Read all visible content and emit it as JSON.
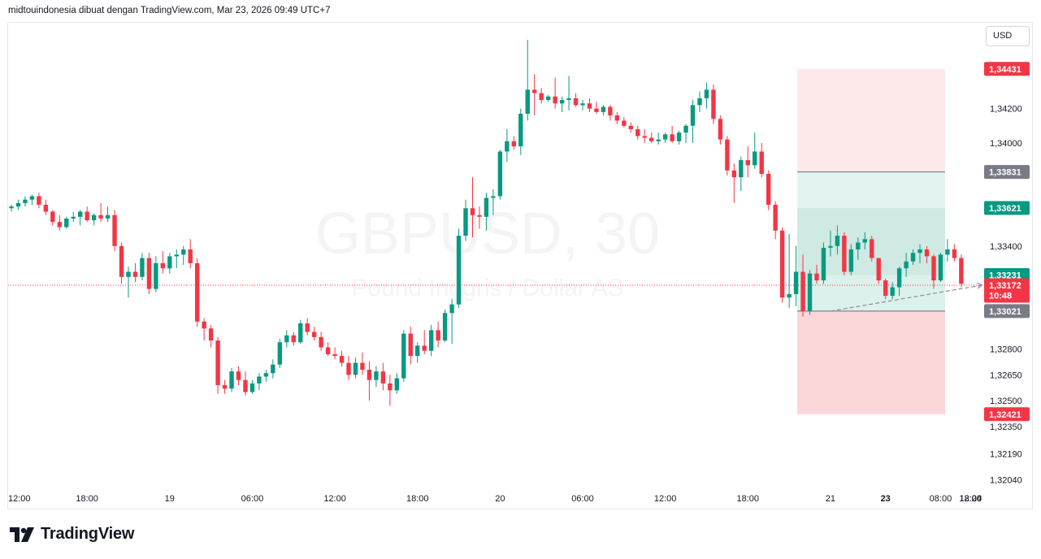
{
  "header": {
    "text": "midtouindonesia dibuat dengan TradingView.com, Mar 23, 2026 09:49 UTC+7"
  },
  "toolbar": {
    "currency_label": "USD"
  },
  "footer": {
    "logo_text": "TradingView"
  },
  "watermark": {
    "symbol": "GBPUSD, 30",
    "description": "Pound Inggris / Dollar AS"
  },
  "chart_data": {
    "type": "candlestick",
    "timeframe": "30",
    "symbol": "GBPUSD",
    "y_axis": {
      "ticks": [
        {
          "value": 1.3443,
          "label": "1,34430"
        },
        {
          "value": 1.342,
          "label": "1,34200"
        },
        {
          "value": 1.34,
          "label": "1,34000"
        },
        {
          "value": 1.3383,
          "label": "1,33830"
        },
        {
          "value": 1.3362,
          "label": "1,33620"
        },
        {
          "value": 1.334,
          "label": "1,33400"
        },
        {
          "value": 1.3323,
          "label": "1,33230"
        },
        {
          "value": 1.3302,
          "label": "1,33020"
        },
        {
          "value": 1.328,
          "label": "1,32800"
        },
        {
          "value": 1.3265,
          "label": "1,32650"
        },
        {
          "value": 1.325,
          "label": "1,32500"
        },
        {
          "value": 1.3242,
          "label": "1,32420"
        },
        {
          "value": 1.3235,
          "label": "1,32350"
        },
        {
          "value": 1.3219,
          "label": "1,32190"
        },
        {
          "value": 1.3204,
          "label": "1,32040"
        }
      ]
    },
    "x_axis": {
      "ticks": [
        {
          "label": "12:00",
          "bar": -1
        },
        {
          "label": "18:00",
          "bar": 11
        },
        {
          "label": "19",
          "bar": 23,
          "bold": false
        },
        {
          "label": "06:00",
          "bar": 35
        },
        {
          "label": "12:00",
          "bar": 47
        },
        {
          "label": "18:00",
          "bar": 59
        },
        {
          "label": "20",
          "bar": 71
        },
        {
          "label": "06:00",
          "bar": 83
        },
        {
          "label": "12:00",
          "bar": 95
        },
        {
          "label": "18:00",
          "bar": 107
        },
        {
          "label": "21",
          "bar": 119
        },
        {
          "label": "23",
          "bar": 127,
          "bold": true
        },
        {
          "label": "08:00",
          "bar": 135
        },
        {
          "label": "12:00",
          "bar": 143
        },
        {
          "label": "18:00",
          "bar": 155
        },
        {
          "label": "24",
          "bar": 167
        }
      ]
    },
    "price_badges": [
      {
        "label": "1,34431",
        "value": 1.34431,
        "color": "#f23645"
      },
      {
        "label": "1,33831",
        "value": 1.33831,
        "color": "#787b86"
      },
      {
        "label": "1,33621",
        "value": 1.33621,
        "color": "#089981"
      },
      {
        "label": "1,33231",
        "value": 1.33231,
        "color": "#089981"
      },
      {
        "label": "1,33172",
        "sublabel": "10:48",
        "value": 1.33172,
        "color": "#f23645"
      },
      {
        "label": "1,33021",
        "value": 1.33021,
        "color": "#787b86"
      },
      {
        "label": "1,32421",
        "value": 1.32421,
        "color": "#f23645"
      }
    ],
    "last_price": 1.33172,
    "trade_boxes": [
      {
        "name": "upper",
        "top": 1.34431,
        "mid": 1.33831,
        "bottom": 1.33021,
        "from_bar": 115,
        "to_bar": 165
      },
      {
        "name": "lower",
        "top": 1.33621,
        "mid": 1.33231,
        "bottom": 1.32421,
        "from_bar": 115,
        "to_bar": 165
      }
    ],
    "dashed_path": {
      "from": {
        "bar": 119,
        "value": 1.33021
      },
      "to": {
        "bar": 141,
        "value": 1.33172
      }
    },
    "candles": [
      {
        "o": 1.3362,
        "h": 1.3364,
        "l": 1.336,
        "c": 1.3363
      },
      {
        "o": 1.3363,
        "h": 1.3367,
        "l": 1.3361,
        "c": 1.3365
      },
      {
        "o": 1.3365,
        "h": 1.3369,
        "l": 1.3363,
        "c": 1.3367
      },
      {
        "o": 1.3367,
        "h": 1.337,
        "l": 1.3364,
        "c": 1.3369
      },
      {
        "o": 1.3369,
        "h": 1.3371,
        "l": 1.3362,
        "c": 1.3364
      },
      {
        "o": 1.3364,
        "h": 1.3367,
        "l": 1.3358,
        "c": 1.336
      },
      {
        "o": 1.336,
        "h": 1.3361,
        "l": 1.3352,
        "c": 1.3354
      },
      {
        "o": 1.3354,
        "h": 1.3358,
        "l": 1.3349,
        "c": 1.3351
      },
      {
        "o": 1.3351,
        "h": 1.3357,
        "l": 1.335,
        "c": 1.3356
      },
      {
        "o": 1.3356,
        "h": 1.336,
        "l": 1.3354,
        "c": 1.3357
      },
      {
        "o": 1.3357,
        "h": 1.3361,
        "l": 1.3352,
        "c": 1.336
      },
      {
        "o": 1.336,
        "h": 1.3363,
        "l": 1.3354,
        "c": 1.3355
      },
      {
        "o": 1.3355,
        "h": 1.3359,
        "l": 1.3352,
        "c": 1.3358
      },
      {
        "o": 1.3358,
        "h": 1.3365,
        "l": 1.3354,
        "c": 1.3356
      },
      {
        "o": 1.3356,
        "h": 1.3363,
        "l": 1.3354,
        "c": 1.3358
      },
      {
        "o": 1.3358,
        "h": 1.3361,
        "l": 1.3337,
        "c": 1.334
      },
      {
        "o": 1.334,
        "h": 1.3342,
        "l": 1.3318,
        "c": 1.3322
      },
      {
        "o": 1.3322,
        "h": 1.3328,
        "l": 1.331,
        "c": 1.3325
      },
      {
        "o": 1.3325,
        "h": 1.333,
        "l": 1.3319,
        "c": 1.3322
      },
      {
        "o": 1.3322,
        "h": 1.3336,
        "l": 1.332,
        "c": 1.3333
      },
      {
        "o": 1.3333,
        "h": 1.3336,
        "l": 1.3312,
        "c": 1.3315
      },
      {
        "o": 1.3315,
        "h": 1.3334,
        "l": 1.3313,
        "c": 1.333
      },
      {
        "o": 1.333,
        "h": 1.3337,
        "l": 1.3324,
        "c": 1.3327
      },
      {
        "o": 1.3327,
        "h": 1.3336,
        "l": 1.3324,
        "c": 1.3334
      },
      {
        "o": 1.3334,
        "h": 1.3338,
        "l": 1.3327,
        "c": 1.3335
      },
      {
        "o": 1.3335,
        "h": 1.334,
        "l": 1.3329,
        "c": 1.3338
      },
      {
        "o": 1.3338,
        "h": 1.3344,
        "l": 1.3327,
        "c": 1.333
      },
      {
        "o": 1.333,
        "h": 1.3333,
        "l": 1.3293,
        "c": 1.3296
      },
      {
        "o": 1.3296,
        "h": 1.3298,
        "l": 1.3285,
        "c": 1.3292
      },
      {
        "o": 1.3292,
        "h": 1.3294,
        "l": 1.3281,
        "c": 1.3285
      },
      {
        "o": 1.3285,
        "h": 1.3287,
        "l": 1.3254,
        "c": 1.3259
      },
      {
        "o": 1.3259,
        "h": 1.3262,
        "l": 1.3254,
        "c": 1.3257
      },
      {
        "o": 1.3257,
        "h": 1.3269,
        "l": 1.3255,
        "c": 1.3267
      },
      {
        "o": 1.3267,
        "h": 1.327,
        "l": 1.3259,
        "c": 1.3262
      },
      {
        "o": 1.3262,
        "h": 1.3267,
        "l": 1.3253,
        "c": 1.3255
      },
      {
        "o": 1.3255,
        "h": 1.3262,
        "l": 1.3254,
        "c": 1.326
      },
      {
        "o": 1.326,
        "h": 1.3266,
        "l": 1.3256,
        "c": 1.3264
      },
      {
        "o": 1.3264,
        "h": 1.3268,
        "l": 1.3261,
        "c": 1.3266
      },
      {
        "o": 1.3266,
        "h": 1.3274,
        "l": 1.3263,
        "c": 1.3271
      },
      {
        "o": 1.3271,
        "h": 1.3286,
        "l": 1.3269,
        "c": 1.3284
      },
      {
        "o": 1.3284,
        "h": 1.3291,
        "l": 1.3281,
        "c": 1.3288
      },
      {
        "o": 1.3288,
        "h": 1.329,
        "l": 1.3282,
        "c": 1.3284
      },
      {
        "o": 1.3284,
        "h": 1.3297,
        "l": 1.3283,
        "c": 1.3295
      },
      {
        "o": 1.3295,
        "h": 1.3298,
        "l": 1.3288,
        "c": 1.329
      },
      {
        "o": 1.329,
        "h": 1.3293,
        "l": 1.3285,
        "c": 1.3287
      },
      {
        "o": 1.3287,
        "h": 1.329,
        "l": 1.3279,
        "c": 1.3281
      },
      {
        "o": 1.3281,
        "h": 1.3284,
        "l": 1.3276,
        "c": 1.3277
      },
      {
        "o": 1.3277,
        "h": 1.3281,
        "l": 1.3274,
        "c": 1.3276
      },
      {
        "o": 1.3276,
        "h": 1.3279,
        "l": 1.327,
        "c": 1.3272
      },
      {
        "o": 1.3272,
        "h": 1.3276,
        "l": 1.3262,
        "c": 1.3265
      },
      {
        "o": 1.3265,
        "h": 1.3275,
        "l": 1.3263,
        "c": 1.3272
      },
      {
        "o": 1.3272,
        "h": 1.3278,
        "l": 1.3265,
        "c": 1.3268
      },
      {
        "o": 1.3268,
        "h": 1.3273,
        "l": 1.325,
        "c": 1.3262
      },
      {
        "o": 1.3262,
        "h": 1.327,
        "l": 1.3258,
        "c": 1.3267
      },
      {
        "o": 1.3267,
        "h": 1.3272,
        "l": 1.3256,
        "c": 1.326
      },
      {
        "o": 1.326,
        "h": 1.3265,
        "l": 1.3247,
        "c": 1.3256
      },
      {
        "o": 1.3256,
        "h": 1.3266,
        "l": 1.3254,
        "c": 1.3263
      },
      {
        "o": 1.3263,
        "h": 1.3291,
        "l": 1.3261,
        "c": 1.3289
      },
      {
        "o": 1.3289,
        "h": 1.3293,
        "l": 1.3271,
        "c": 1.3276
      },
      {
        "o": 1.3276,
        "h": 1.3284,
        "l": 1.3272,
        "c": 1.3282
      },
      {
        "o": 1.3282,
        "h": 1.3291,
        "l": 1.3277,
        "c": 1.3279
      },
      {
        "o": 1.3279,
        "h": 1.3294,
        "l": 1.3276,
        "c": 1.3291
      },
      {
        "o": 1.3291,
        "h": 1.3296,
        "l": 1.3281,
        "c": 1.3285
      },
      {
        "o": 1.3285,
        "h": 1.3303,
        "l": 1.3284,
        "c": 1.3301
      },
      {
        "o": 1.3301,
        "h": 1.3309,
        "l": 1.3283,
        "c": 1.3306
      },
      {
        "o": 1.3306,
        "h": 1.335,
        "l": 1.3304,
        "c": 1.3346
      },
      {
        "o": 1.3346,
        "h": 1.3367,
        "l": 1.3343,
        "c": 1.3362
      },
      {
        "o": 1.3362,
        "h": 1.338,
        "l": 1.3345,
        "c": 1.3358
      },
      {
        "o": 1.3358,
        "h": 1.3363,
        "l": 1.335,
        "c": 1.3357
      },
      {
        "o": 1.3357,
        "h": 1.3371,
        "l": 1.3349,
        "c": 1.3368
      },
      {
        "o": 1.3368,
        "h": 1.3373,
        "l": 1.3358,
        "c": 1.3369
      },
      {
        "o": 1.3369,
        "h": 1.3396,
        "l": 1.3367,
        "c": 1.3395
      },
      {
        "o": 1.3395,
        "h": 1.3408,
        "l": 1.3389,
        "c": 1.3401
      },
      {
        "o": 1.3401,
        "h": 1.3404,
        "l": 1.3396,
        "c": 1.3398
      },
      {
        "o": 1.3398,
        "h": 1.342,
        "l": 1.3393,
        "c": 1.3417
      },
      {
        "o": 1.3417,
        "h": 1.346,
        "l": 1.3413,
        "c": 1.3431
      },
      {
        "o": 1.3431,
        "h": 1.344,
        "l": 1.3416,
        "c": 1.3429
      },
      {
        "o": 1.3429,
        "h": 1.3432,
        "l": 1.3423,
        "c": 1.3425
      },
      {
        "o": 1.3425,
        "h": 1.3428,
        "l": 1.3424,
        "c": 1.3427
      },
      {
        "o": 1.3427,
        "h": 1.3438,
        "l": 1.342,
        "c": 1.3423
      },
      {
        "o": 1.3423,
        "h": 1.3427,
        "l": 1.3418,
        "c": 1.3425
      },
      {
        "o": 1.3425,
        "h": 1.3439,
        "l": 1.3419,
        "c": 1.3426
      },
      {
        "o": 1.3426,
        "h": 1.3429,
        "l": 1.3421,
        "c": 1.3422
      },
      {
        "o": 1.3422,
        "h": 1.3425,
        "l": 1.3419,
        "c": 1.3423
      },
      {
        "o": 1.3423,
        "h": 1.3426,
        "l": 1.3418,
        "c": 1.342
      },
      {
        "o": 1.342,
        "h": 1.3424,
        "l": 1.3417,
        "c": 1.3418
      },
      {
        "o": 1.3418,
        "h": 1.3422,
        "l": 1.3416,
        "c": 1.3421
      },
      {
        "o": 1.3421,
        "h": 1.3422,
        "l": 1.3413,
        "c": 1.3416
      },
      {
        "o": 1.3416,
        "h": 1.3418,
        "l": 1.3411,
        "c": 1.3413
      },
      {
        "o": 1.3413,
        "h": 1.3415,
        "l": 1.3409,
        "c": 1.341
      },
      {
        "o": 1.341,
        "h": 1.3412,
        "l": 1.3406,
        "c": 1.3408
      },
      {
        "o": 1.3408,
        "h": 1.341,
        "l": 1.3402,
        "c": 1.3404
      },
      {
        "o": 1.3404,
        "h": 1.3408,
        "l": 1.34,
        "c": 1.3403
      },
      {
        "o": 1.3403,
        "h": 1.3406,
        "l": 1.34,
        "c": 1.3401
      },
      {
        "o": 1.3401,
        "h": 1.3406,
        "l": 1.3399,
        "c": 1.3402
      },
      {
        "o": 1.3402,
        "h": 1.3406,
        "l": 1.34,
        "c": 1.3405
      },
      {
        "o": 1.3405,
        "h": 1.341,
        "l": 1.34,
        "c": 1.3401
      },
      {
        "o": 1.3401,
        "h": 1.3407,
        "l": 1.3399,
        "c": 1.3406
      },
      {
        "o": 1.3406,
        "h": 1.3411,
        "l": 1.34,
        "c": 1.341
      },
      {
        "o": 1.341,
        "h": 1.3425,
        "l": 1.34,
        "c": 1.3422
      },
      {
        "o": 1.3422,
        "h": 1.343,
        "l": 1.3418,
        "c": 1.3426
      },
      {
        "o": 1.3426,
        "h": 1.3435,
        "l": 1.342,
        "c": 1.3431
      },
      {
        "o": 1.3431,
        "h": 1.3434,
        "l": 1.3411,
        "c": 1.3414
      },
      {
        "o": 1.3414,
        "h": 1.3416,
        "l": 1.3399,
        "c": 1.3402
      },
      {
        "o": 1.3402,
        "h": 1.3404,
        "l": 1.3381,
        "c": 1.3384
      },
      {
        "o": 1.3384,
        "h": 1.3388,
        "l": 1.3365,
        "c": 1.338
      },
      {
        "o": 1.338,
        "h": 1.3392,
        "l": 1.3372,
        "c": 1.339
      },
      {
        "o": 1.339,
        "h": 1.3398,
        "l": 1.338,
        "c": 1.3387
      },
      {
        "o": 1.3387,
        "h": 1.3406,
        "l": 1.3385,
        "c": 1.3395
      },
      {
        "o": 1.3395,
        "h": 1.34,
        "l": 1.338,
        "c": 1.3382
      },
      {
        "o": 1.3382,
        "h": 1.3384,
        "l": 1.3361,
        "c": 1.3364
      },
      {
        "o": 1.3364,
        "h": 1.3366,
        "l": 1.3344,
        "c": 1.3349
      },
      {
        "o": 1.3349,
        "h": 1.3351,
        "l": 1.3307,
        "c": 1.331
      },
      {
        "o": 1.331,
        "h": 1.3347,
        "l": 1.3304,
        "c": 1.3312
      },
      {
        "o": 1.3312,
        "h": 1.334,
        "l": 1.3305,
        "c": 1.3325
      },
      {
        "o": 1.3325,
        "h": 1.3335,
        "l": 1.3299,
        "c": 1.3302
      },
      {
        "o": 1.3302,
        "h": 1.3326,
        "l": 1.33,
        "c": 1.3324
      },
      {
        "o": 1.3324,
        "h": 1.3329,
        "l": 1.3318,
        "c": 1.332
      },
      {
        "o": 1.332,
        "h": 1.3342,
        "l": 1.3318,
        "c": 1.3339
      },
      {
        "o": 1.3339,
        "h": 1.3349,
        "l": 1.3334,
        "c": 1.334
      },
      {
        "o": 1.334,
        "h": 1.3352,
        "l": 1.3335,
        "c": 1.3346
      },
      {
        "o": 1.3346,
        "h": 1.3348,
        "l": 1.3323,
        "c": 1.3325
      },
      {
        "o": 1.3325,
        "h": 1.3341,
        "l": 1.3323,
        "c": 1.3338
      },
      {
        "o": 1.3338,
        "h": 1.3345,
        "l": 1.3332,
        "c": 1.3342
      },
      {
        "o": 1.3342,
        "h": 1.3348,
        "l": 1.3338,
        "c": 1.3344
      },
      {
        "o": 1.3344,
        "h": 1.3346,
        "l": 1.3331,
        "c": 1.3333
      },
      {
        "o": 1.3333,
        "h": 1.3332,
        "l": 1.3318,
        "c": 1.332
      },
      {
        "o": 1.332,
        "h": 1.3321,
        "l": 1.3309,
        "c": 1.3311
      },
      {
        "o": 1.3311,
        "h": 1.3319,
        "l": 1.3309,
        "c": 1.3316
      },
      {
        "o": 1.3316,
        "h": 1.3328,
        "l": 1.3311,
        "c": 1.3327
      },
      {
        "o": 1.3327,
        "h": 1.3336,
        "l": 1.3322,
        "c": 1.3331
      },
      {
        "o": 1.3331,
        "h": 1.3338,
        "l": 1.3329,
        "c": 1.3336
      },
      {
        "o": 1.3336,
        "h": 1.3341,
        "l": 1.333,
        "c": 1.3338
      },
      {
        "o": 1.3338,
        "h": 1.334,
        "l": 1.333,
        "c": 1.3334
      },
      {
        "o": 1.3334,
        "h": 1.3335,
        "l": 1.3315,
        "c": 1.332
      },
      {
        "o": 1.332,
        "h": 1.3336,
        "l": 1.3319,
        "c": 1.3335
      },
      {
        "o": 1.3335,
        "h": 1.3344,
        "l": 1.3331,
        "c": 1.3338
      },
      {
        "o": 1.3338,
        "h": 1.3341,
        "l": 1.3331,
        "c": 1.3333
      },
      {
        "o": 1.3333,
        "h": 1.3335,
        "l": 1.3316,
        "c": 1.3318
      }
    ]
  }
}
